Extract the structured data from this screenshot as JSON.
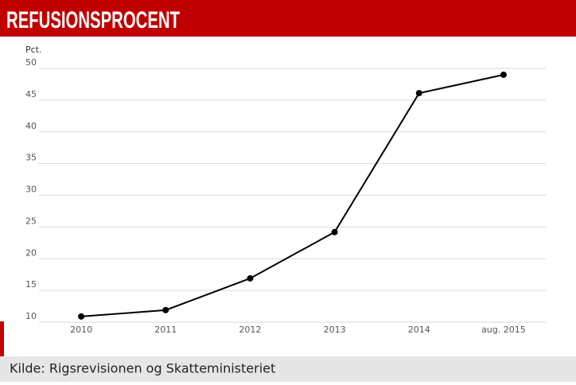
{
  "chart_data": {
    "type": "line",
    "title": "REFUSIONSPROCENT",
    "y_label": "Pct.",
    "source": "Kilde: Rigsrevisionen og Skatteministeriet",
    "categories": [
      "2010",
      "2011",
      "2012",
      "2013",
      "2014",
      "aug. 2015"
    ],
    "values": [
      10.9,
      11.9,
      16.9,
      24.2,
      46.1,
      49.0
    ],
    "color": "#000000",
    "ylim": [
      10,
      50
    ],
    "yticks": [
      10,
      15,
      20,
      25,
      30,
      35,
      40,
      45,
      50
    ],
    "grid": true
  }
}
